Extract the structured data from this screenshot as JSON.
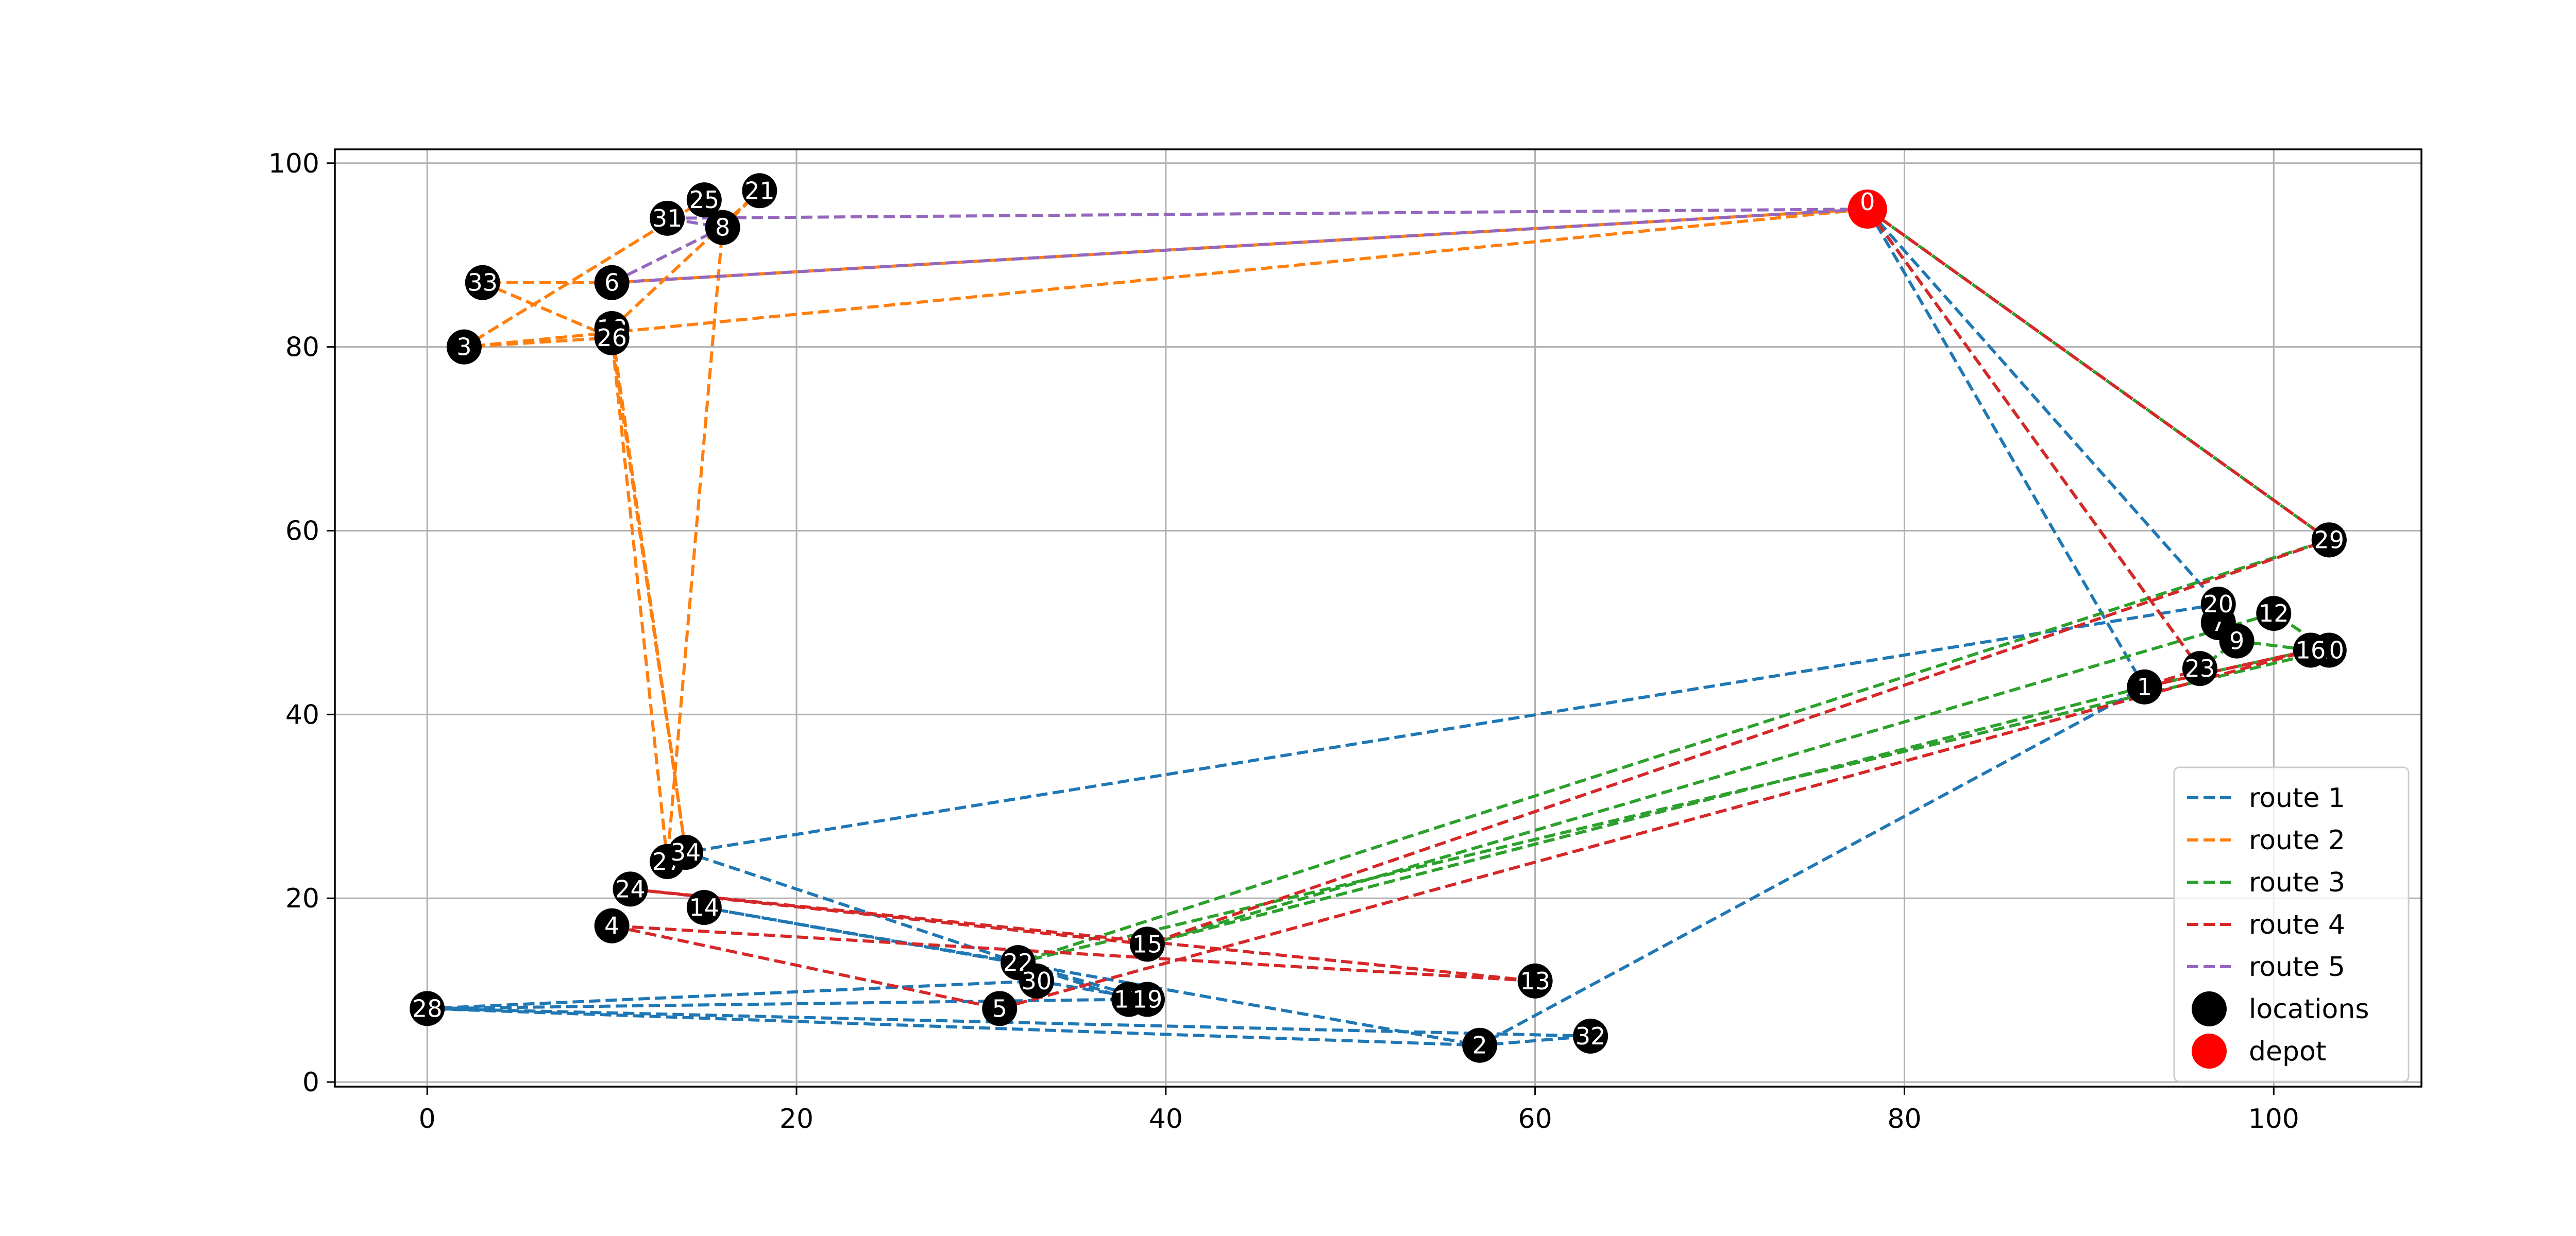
{
  "chart_data": {
    "type": "scatter",
    "title": "",
    "xlabel": "",
    "ylabel": "",
    "xlim": [
      -5,
      108
    ],
    "ylim": [
      -0.5,
      101.5
    ],
    "xticks": [
      0,
      20,
      40,
      60,
      80,
      100
    ],
    "yticks": [
      0,
      20,
      40,
      60,
      80,
      100
    ],
    "grid": true,
    "legend_position": "lower-right",
    "depot": {
      "id": "0",
      "x": 78,
      "y": 95
    },
    "locations": [
      {
        "id": "1",
        "x": 93,
        "y": 43
      },
      {
        "id": "2",
        "x": 57,
        "y": 4
      },
      {
        "id": "3",
        "x": 2,
        "y": 80
      },
      {
        "id": "4",
        "x": 10,
        "y": 17
      },
      {
        "id": "5",
        "x": 31,
        "y": 8
      },
      {
        "id": "6",
        "x": 10,
        "y": 87
      },
      {
        "id": "7",
        "x": 97,
        "y": 50
      },
      {
        "id": "8",
        "x": 16,
        "y": 93
      },
      {
        "id": "9",
        "x": 98,
        "y": 48
      },
      {
        "id": "10",
        "x": 103,
        "y": 47
      },
      {
        "id": "11",
        "x": 38,
        "y": 9
      },
      {
        "id": "12",
        "x": 100,
        "y": 51
      },
      {
        "id": "13",
        "x": 60,
        "y": 11
      },
      {
        "id": "14",
        "x": 15,
        "y": 19
      },
      {
        "id": "15",
        "x": 39,
        "y": 15
      },
      {
        "id": "16",
        "x": 102,
        "y": 47
      },
      {
        "id": "17",
        "x": 103,
        "y": 59
      },
      {
        "id": "18",
        "x": 10,
        "y": 82
      },
      {
        "id": "19",
        "x": 39,
        "y": 9
      },
      {
        "id": "20",
        "x": 97,
        "y": 52
      },
      {
        "id": "21",
        "x": 18,
        "y": 97
      },
      {
        "id": "22",
        "x": 32,
        "y": 13
      },
      {
        "id": "23",
        "x": 96,
        "y": 45
      },
      {
        "id": "24",
        "x": 11,
        "y": 21
      },
      {
        "id": "25",
        "x": 15,
        "y": 96
      },
      {
        "id": "26",
        "x": 10,
        "y": 81
      },
      {
        "id": "27",
        "x": 13,
        "y": 24
      },
      {
        "id": "28",
        "x": 0,
        "y": 8
      },
      {
        "id": "29",
        "x": 103,
        "y": 59
      },
      {
        "id": "30",
        "x": 33,
        "y": 11
      },
      {
        "id": "31",
        "x": 13,
        "y": 94
      },
      {
        "id": "32",
        "x": 63,
        "y": 5
      },
      {
        "id": "33",
        "x": 3,
        "y": 87
      },
      {
        "id": "34",
        "x": 14,
        "y": 25
      }
    ],
    "series": [
      {
        "name": "route 1",
        "color": "#1f77b4",
        "dashed": true,
        "stops": [
          "0",
          "20",
          "34",
          "11",
          "28",
          "32",
          "2",
          "14",
          "22",
          "19",
          "30",
          "28",
          "2",
          "1",
          "0"
        ]
      },
      {
        "name": "route 2",
        "color": "#ff7f0e",
        "dashed": true,
        "stops": [
          "0",
          "6",
          "33",
          "26",
          "27",
          "8",
          "21",
          "18",
          "34",
          "26",
          "3",
          "25",
          "3",
          "0"
        ]
      },
      {
        "name": "route 3",
        "color": "#2ca02c",
        "dashed": true,
        "stops": [
          "0",
          "23",
          "9",
          "16",
          "1",
          "15",
          "12",
          "10",
          "22",
          "29",
          "0"
        ]
      },
      {
        "name": "route 4",
        "color": "#d62728",
        "dashed": true,
        "stops": [
          "0",
          "23",
          "1",
          "16",
          "5",
          "4",
          "13",
          "24",
          "15",
          "17",
          "0"
        ]
      },
      {
        "name": "route 5",
        "color": "#9467bd",
        "dashed": true,
        "stops": [
          "0",
          "31",
          "8",
          "6",
          "0"
        ]
      }
    ],
    "legend": [
      {
        "label": "route 1",
        "kind": "line",
        "color": "#1f77b4"
      },
      {
        "label": "route 2",
        "kind": "line",
        "color": "#ff7f0e"
      },
      {
        "label": "route 3",
        "kind": "line",
        "color": "#2ca02c"
      },
      {
        "label": "route 4",
        "kind": "line",
        "color": "#d62728"
      },
      {
        "label": "route 5",
        "kind": "line",
        "color": "#9467bd"
      },
      {
        "label": "locations",
        "kind": "marker",
        "color": "#000000"
      },
      {
        "label": "depot",
        "kind": "marker",
        "color": "#ff0000"
      }
    ]
  }
}
